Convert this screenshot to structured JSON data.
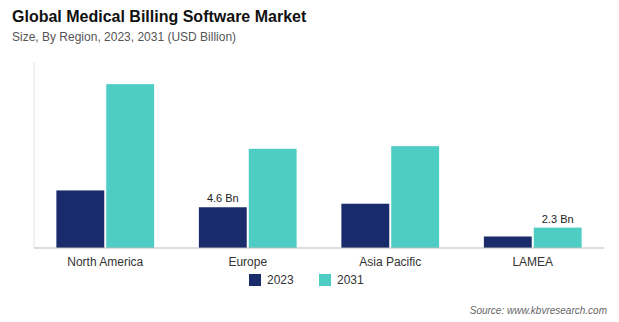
{
  "chart_data": {
    "type": "bar",
    "title": "Global Medical Billing Software Market",
    "subtitle": "Size, By Region, 2023, 2031 (USD Billion)",
    "source": "Source: www.kbvresearch.com",
    "categories": [
      "North America",
      "Europe",
      "Asia Pacific",
      "LAMEA"
    ],
    "series": [
      {
        "name": "2023",
        "color": "#1a2b6b",
        "values": [
          6.5,
          4.6,
          5.0,
          1.3
        ]
      },
      {
        "name": "2031",
        "color": "#4ecdc4",
        "values": [
          18.5,
          11.2,
          11.5,
          2.3
        ]
      }
    ],
    "annotations": [
      {
        "text": "4.6 Bn",
        "x": "Europe",
        "y": 4.6,
        "series": "2023"
      },
      {
        "text": "2.3 Bn",
        "x": "LAMEA",
        "y": 2.3,
        "series": "2031"
      }
    ],
    "ylim": [
      0,
      21
    ],
    "grid": false,
    "legend": "bottom",
    "tick_labels": "x"
  }
}
